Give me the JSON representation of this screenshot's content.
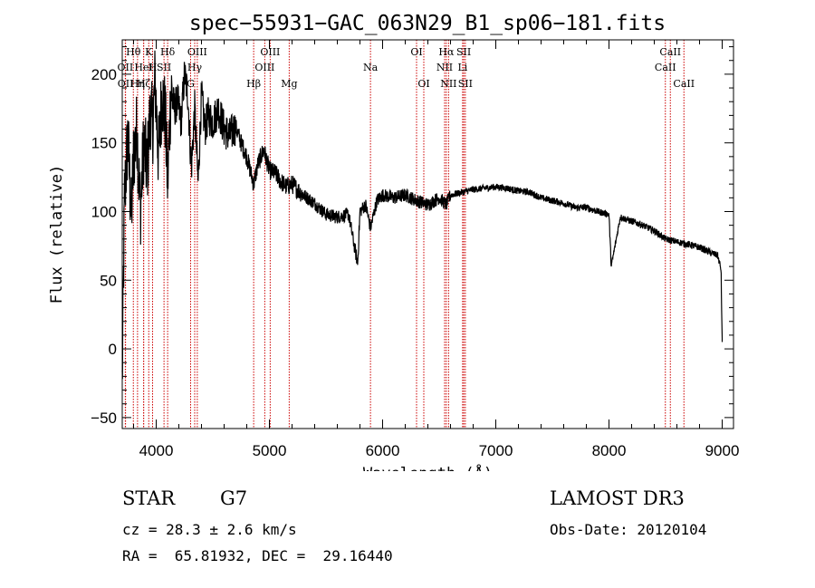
{
  "chart_data": {
    "type": "line",
    "title": "spec−55931−GAC_063N29_B1_sp06−181.fits",
    "xlabel": "Wavelength (Å)",
    "ylabel": "Flux (relative)",
    "xlim": [
      3700,
      9100
    ],
    "ylim": [
      -58,
      225
    ],
    "xticks": [
      4000,
      5000,
      6000,
      7000,
      8000,
      9000
    ],
    "xtick_labels": [
      "4000",
      "5000",
      "6000",
      "7000",
      "8000",
      "9000"
    ],
    "yticks": [
      -50,
      0,
      50,
      100,
      150,
      200
    ],
    "ytick_labels": [
      "−50",
      "0",
      "50",
      "100",
      "150",
      "200"
    ],
    "series": [
      {
        "name": "spectrum",
        "x": [
          3700,
          3720,
          3750,
          3780,
          3800,
          3830,
          3860,
          3890,
          3920,
          3950,
          3968,
          3990,
          4020,
          4050,
          4080,
          4101,
          4130,
          4160,
          4190,
          4220,
          4250,
          4280,
          4310,
          4340,
          4370,
          4400,
          4430,
          4460,
          4500,
          4550,
          4600,
          4650,
          4700,
          4750,
          4800,
          4861,
          4900,
          4950,
          5000,
          5050,
          5100,
          5150,
          5200,
          5300,
          5400,
          5500,
          5600,
          5700,
          5750,
          5780,
          5800,
          5850,
          5893,
          5950,
          6000,
          6100,
          6200,
          6300,
          6400,
          6500,
          6563,
          6600,
          6700,
          6800,
          6900,
          7000,
          7100,
          7200,
          7300,
          7400,
          7500,
          7600,
          7700,
          7800,
          7900,
          8000,
          8020,
          8100,
          8200,
          8300,
          8400,
          8500,
          8600,
          8700,
          8800,
          8900,
          8960,
          8990,
          9000
        ],
        "values": [
          -25,
          110,
          155,
          95,
          140,
          160,
          100,
          150,
          130,
          175,
          160,
          195,
          140,
          185,
          170,
          120,
          190,
          175,
          180,
          165,
          200,
          185,
          130,
          175,
          120,
          185,
          160,
          170,
          165,
          175,
          160,
          155,
          162,
          150,
          140,
          120,
          135,
          145,
          130,
          128,
          122,
          118,
          120,
          112,
          106,
          98,
          96,
          98,
          75,
          62,
          100,
          105,
          88,
          108,
          112,
          110,
          112,
          108,
          105,
          110,
          105,
          112,
          114,
          116,
          117,
          118,
          117,
          115,
          114,
          110,
          108,
          106,
          103,
          103,
          100,
          98,
          60,
          96,
          93,
          90,
          86,
          80,
          78,
          76,
          74,
          70,
          68,
          58,
          5
        ]
      }
    ],
    "spectral_lines": [
      {
        "label": "Hθ",
        "wavelength": 3798,
        "row": 1
      },
      {
        "label": "OII",
        "wavelength": 3727,
        "row": 2
      },
      {
        "label": "OII",
        "wavelength": 3729,
        "row": 3
      },
      {
        "label": "K",
        "wavelength": 3934,
        "row": 1
      },
      {
        "label": "HeI",
        "wavelength": 3889,
        "row": 2
      },
      {
        "label": "Hη",
        "wavelength": 3835,
        "row": 3
      },
      {
        "label": "Hζ",
        "wavelength": 3889,
        "row": 3
      },
      {
        "label": "H",
        "wavelength": 3968,
        "row": 2
      },
      {
        "label": "SII",
        "wavelength": 4069,
        "row": 2
      },
      {
        "label": "Hδ",
        "wavelength": 4101,
        "row": 1
      },
      {
        "label": "OIII",
        "wavelength": 4363,
        "row": 1
      },
      {
        "label": "Hγ",
        "wavelength": 4340,
        "row": 2
      },
      {
        "label": "G",
        "wavelength": 4304,
        "row": 3
      },
      {
        "label": "Hβ",
        "wavelength": 4861,
        "row": 3
      },
      {
        "label": "OIII",
        "wavelength": 5007,
        "row": 1
      },
      {
        "label": "OIII",
        "wavelength": 4959,
        "row": 2
      },
      {
        "label": "Mg",
        "wavelength": 5175,
        "row": 3
      },
      {
        "label": "Na",
        "wavelength": 5893,
        "row": 2
      },
      {
        "label": "OI",
        "wavelength": 6300,
        "row": 1
      },
      {
        "label": "OI",
        "wavelength": 6364,
        "row": 3
      },
      {
        "label": "Hα",
        "wavelength": 6563,
        "row": 1
      },
      {
        "label": "NII",
        "wavelength": 6548,
        "row": 2
      },
      {
        "label": "NII",
        "wavelength": 6583,
        "row": 3
      },
      {
        "label": "SII",
        "wavelength": 6717,
        "row": 1
      },
      {
        "label": "Li",
        "wavelength": 6707,
        "row": 2
      },
      {
        "label": "SII",
        "wavelength": 6731,
        "row": 3
      },
      {
        "label": "CaII",
        "wavelength": 8542,
        "row": 1
      },
      {
        "label": "CaII",
        "wavelength": 8498,
        "row": 2
      },
      {
        "label": "CaII",
        "wavelength": 8662,
        "row": 3
      }
    ],
    "line_color": "#000000",
    "marker_color": "#cc0000"
  },
  "info": {
    "object_class": "STAR",
    "subclass": "G7",
    "survey": "LAMOST DR3",
    "redshift": "cz = 28.3 ± 2.6 km/s",
    "obs_date": "Obs-Date: 20120104",
    "coords": "RA =  65.81932, DEC =  29.16440"
  }
}
